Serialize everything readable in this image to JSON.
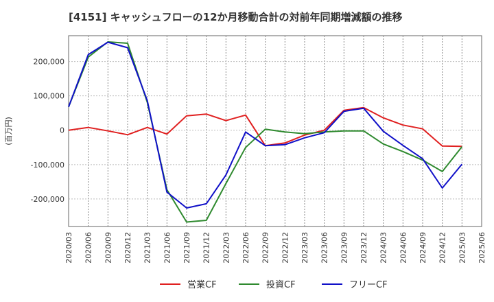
{
  "chart_data": {
    "type": "line",
    "title": "[4151]  キャッシュフローの12か月移動合計の対前年同期増減額の推移",
    "ylabel": "(百万円)",
    "xlabel": "",
    "ylim": [
      -280000,
      275000
    ],
    "yticks": [
      -200000,
      -100000,
      0,
      100000,
      200000
    ],
    "ytick_labels": [
      "-200,000",
      "-100,000",
      "0",
      "100,000",
      "200,000"
    ],
    "x": [
      "2020/03",
      "2020/06",
      "2020/09",
      "2020/12",
      "2021/03",
      "2021/06",
      "2021/09",
      "2021/12",
      "2022/03",
      "2022/06",
      "2022/09",
      "2022/12",
      "2023/03",
      "2023/06",
      "2023/09",
      "2023/12",
      "2024/03",
      "2024/06",
      "2024/09",
      "2024/12",
      "2025/03",
      "2025/06"
    ],
    "grid": "vertical-dashed",
    "legend": "bottom",
    "series": [
      {
        "name": "営業CF",
        "color": "#e02020",
        "values": [
          0,
          8000,
          -2000,
          -13000,
          8000,
          -11000,
          42000,
          47000,
          28000,
          44000,
          -45000,
          -37000,
          -14000,
          0,
          58000,
          66000,
          36000,
          15000,
          4000,
          -46000,
          -47000,
          null
        ]
      },
      {
        "name": "投資CF",
        "color": "#2f8a2f",
        "values": [
          68000,
          213000,
          257000,
          253000,
          81000,
          -173000,
          -267000,
          -262000,
          -155000,
          -50000,
          3000,
          -5000,
          -10000,
          -5000,
          -2000,
          -2000,
          -40000,
          -62000,
          -87000,
          -120000,
          -48000,
          null
        ]
      },
      {
        "name": "フリーCF",
        "color": "#1010c8",
        "values": [
          68000,
          220000,
          256000,
          240000,
          86000,
          -180000,
          -226000,
          -214000,
          -130000,
          -5000,
          -45000,
          -42000,
          -22000,
          -7000,
          55000,
          64000,
          -3000,
          -44000,
          -83000,
          -168000,
          -99000,
          null
        ]
      }
    ]
  }
}
